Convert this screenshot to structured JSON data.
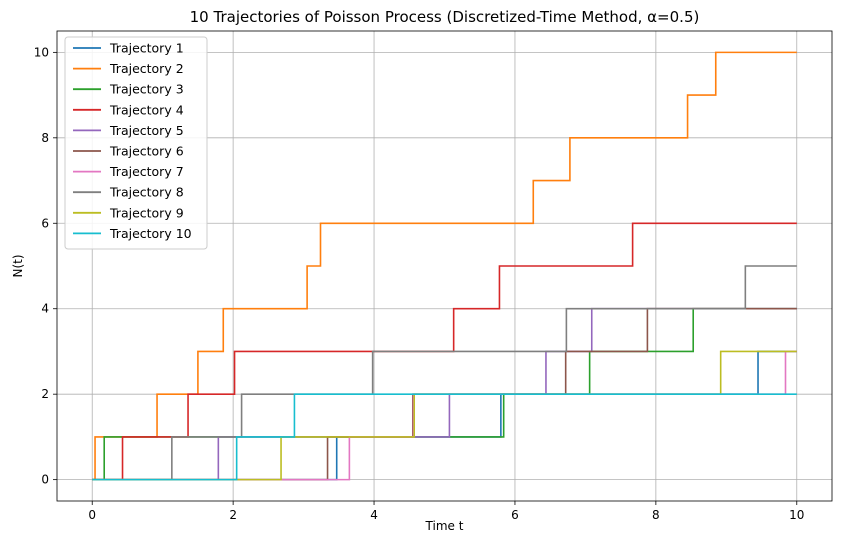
{
  "chart_data": {
    "type": "line",
    "step": "post",
    "title": "10 Trajectories of Poisson Process (Discretized-Time Method, α=0.5)",
    "xlabel": "Time t",
    "ylabel": "N(t)",
    "xlim": [
      -0.5,
      10.5
    ],
    "ylim": [
      -0.5,
      10.5
    ],
    "xticks": [
      0,
      2,
      4,
      6,
      8,
      10
    ],
    "yticks": [
      0,
      2,
      4,
      6,
      8,
      10
    ],
    "grid": true,
    "legend_position": "top-left",
    "series": [
      {
        "name": "Trajectory 1",
        "color": "#1f77b4",
        "jumps": [
          3.47,
          5.8,
          9.45
        ]
      },
      {
        "name": "Trajectory 2",
        "color": "#ff7f0e",
        "jumps": [
          0.04,
          0.92,
          1.5,
          1.86,
          3.05,
          3.24,
          6.26,
          6.78,
          8.45,
          8.85
        ]
      },
      {
        "name": "Trajectory 3",
        "color": "#2ca02c",
        "jumps": [
          0.17,
          5.84,
          7.06,
          8.53
        ]
      },
      {
        "name": "Trajectory 4",
        "color": "#d62728",
        "jumps": [
          0.43,
          1.36,
          2.02,
          5.13,
          5.78,
          7.67
        ]
      },
      {
        "name": "Trajectory 5",
        "color": "#9467bd",
        "jumps": [
          1.79,
          5.07,
          6.44,
          7.09
        ]
      },
      {
        "name": "Trajectory 6",
        "color": "#8c564b",
        "jumps": [
          3.34,
          4.55,
          6.72,
          7.88
        ]
      },
      {
        "name": "Trajectory 7",
        "color": "#e377c2",
        "jumps": [
          3.65,
          4.56,
          9.84
        ]
      },
      {
        "name": "Trajectory 8",
        "color": "#7f7f7f",
        "jumps": [
          1.13,
          2.12,
          3.98,
          6.73,
          9.27
        ]
      },
      {
        "name": "Trajectory 9",
        "color": "#bcbd22",
        "jumps": [
          2.68,
          4.57,
          8.92
        ]
      },
      {
        "name": "Trajectory 10",
        "color": "#17becf",
        "jumps": [
          2.05,
          2.87
        ]
      }
    ]
  }
}
